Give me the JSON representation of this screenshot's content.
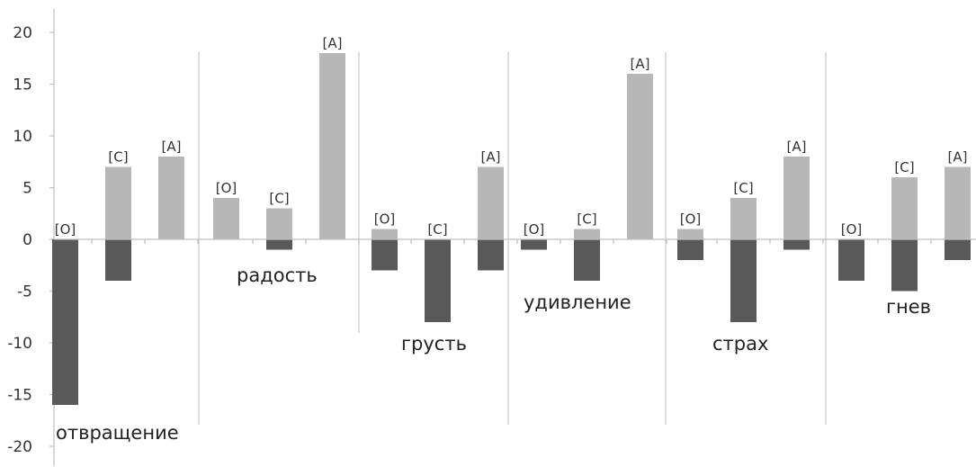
{
  "chart_data": {
    "type": "bar",
    "title": "",
    "xlabel": "",
    "ylabel": "",
    "ylim": [
      -20,
      20
    ],
    "yticks": [
      20,
      15,
      10,
      5,
      0,
      -5,
      -10,
      -15,
      -20
    ],
    "grid": false,
    "legend": "none",
    "colors": {
      "positive": "#b7b7b7",
      "negative": "#595959"
    },
    "groups": [
      {
        "name": "отвращение",
        "bars": [
          {
            "label": "[О]",
            "positive": 0,
            "negative": -16
          },
          {
            "label": "[С]",
            "positive": 7,
            "negative": -4
          },
          {
            "label": "[А]",
            "positive": 8,
            "negative": 0
          }
        ]
      },
      {
        "name": "радость",
        "bars": [
          {
            "label": "[О]",
            "positive": 4,
            "negative": 0
          },
          {
            "label": "[С]",
            "positive": 3,
            "negative": -1
          },
          {
            "label": "[А]",
            "positive": 18,
            "negative": 0
          }
        ]
      },
      {
        "name": "грусть",
        "bars": [
          {
            "label": "[О]",
            "positive": 1,
            "negative": -3
          },
          {
            "label": "[С]",
            "positive": 0,
            "negative": -8
          },
          {
            "label": "[А]",
            "positive": 7,
            "negative": -3
          }
        ]
      },
      {
        "name": "удивление",
        "bars": [
          {
            "label": "[О]",
            "positive": 0,
            "negative": -1
          },
          {
            "label": "[С]",
            "positive": 1,
            "negative": -4
          },
          {
            "label": "[А]",
            "positive": 16,
            "negative": 0
          }
        ]
      },
      {
        "name": "страх",
        "bars": [
          {
            "label": "[О]",
            "positive": 1,
            "negative": -2
          },
          {
            "label": "[С]",
            "positive": 4,
            "negative": -8
          },
          {
            "label": "[А]",
            "positive": 8,
            "negative": -1
          }
        ]
      },
      {
        "name": "гнев",
        "bars": [
          {
            "label": "[О]",
            "positive": 0,
            "negative": -4
          },
          {
            "label": "[С]",
            "positive": 6,
            "negative": -5
          },
          {
            "label": "[А]",
            "positive": 7,
            "negative": -2
          }
        ]
      }
    ]
  }
}
